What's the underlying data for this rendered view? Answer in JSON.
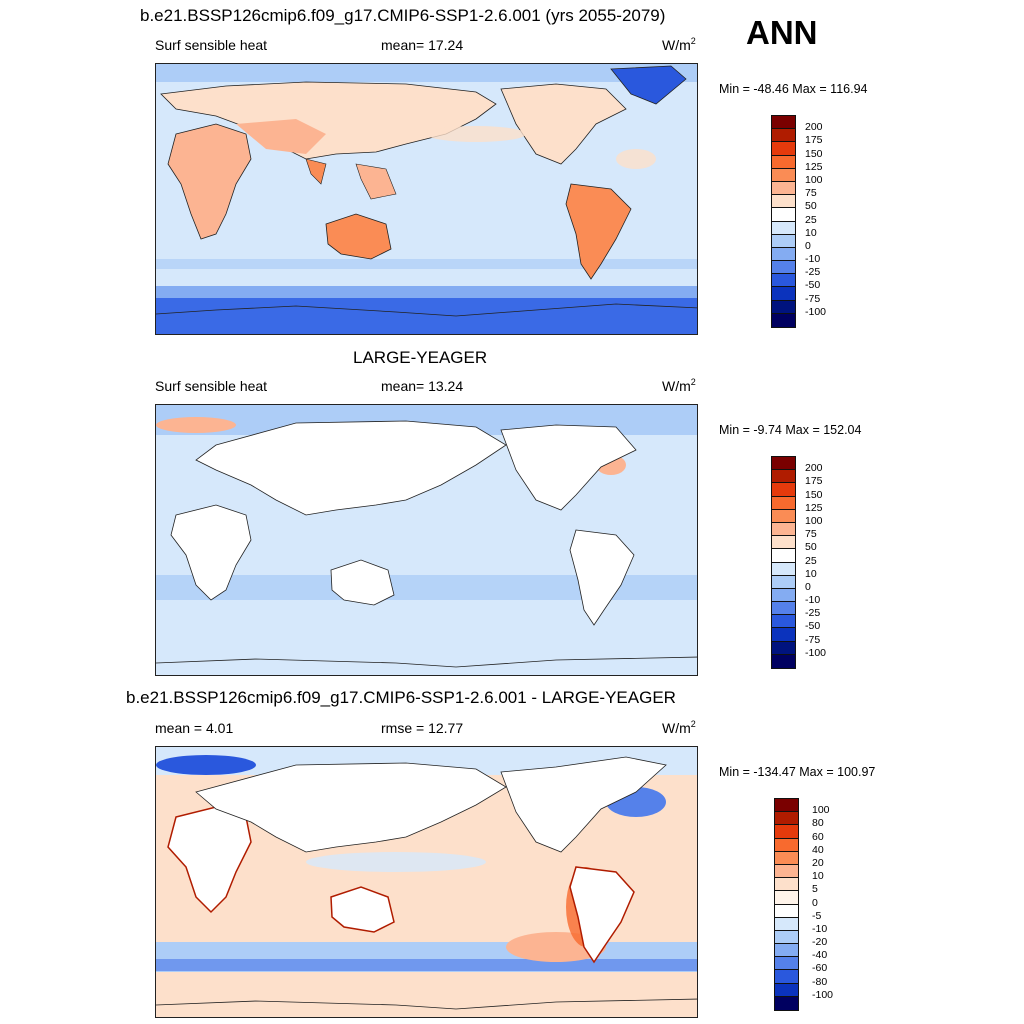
{
  "annual_label": "ANN",
  "panels": [
    {
      "title": "b.e21.BSSP126cmip6.f09_g17.CMIP6-SSP1-2.6.001 (yrs 2055-2079)",
      "left_label": "Surf sensible heat",
      "mid_label": "mean=  17.24",
      "units": "W/m",
      "units_sup": "2",
      "minmax": "Min = -48.46 Max = 116.94",
      "levels": [
        "200",
        "175",
        "150",
        "125",
        "100",
        "75",
        "50",
        "25",
        "10",
        "0",
        "-10",
        "-25",
        "-50",
        "-75",
        "-100"
      ]
    },
    {
      "title": "LARGE-YEAGER",
      "left_label": "Surf sensible heat",
      "mid_label": "mean=  13.24",
      "units": "W/m",
      "units_sup": "2",
      "minmax": "Min =  -9.74 Max = 152.04",
      "levels": [
        "200",
        "175",
        "150",
        "125",
        "100",
        "75",
        "50",
        "25",
        "10",
        "0",
        "-10",
        "-25",
        "-50",
        "-75",
        "-100"
      ]
    },
    {
      "title": "b.e21.BSSP126cmip6.f09_g17.CMIP6-SSP1-2.6.001 - LARGE-YEAGER",
      "left_label": "mean =   4.01",
      "mid_label": "rmse =  12.77",
      "units": "W/m",
      "units_sup": "2",
      "minmax": "Min = -134.47 Max = 100.97",
      "levels": [
        "100",
        "80",
        "60",
        "40",
        "20",
        "10",
        "5",
        "0",
        "-5",
        "-10",
        "-20",
        "-40",
        "-60",
        "-80",
        "-100"
      ]
    }
  ],
  "colors": {
    "abs_scale": [
      "#7a0000",
      "#b01c00",
      "#e53a0c",
      "#f86a2e",
      "#fa8c55",
      "#fcb492",
      "#fde0cb",
      "#ffffff",
      "#d6e8fb",
      "#adcdf7",
      "#84acf2",
      "#5581ea",
      "#2a58dd",
      "#0b33bd",
      "#00137e",
      "#000060"
    ],
    "diff_scale": [
      "#7a0000",
      "#b01c00",
      "#e53a0c",
      "#f86a2e",
      "#fa8c55",
      "#fcb492",
      "#fde0cb",
      "#fff4ea",
      "#ffffff",
      "#d6e8fb",
      "#adcdf7",
      "#84acf2",
      "#5581ea",
      "#2a58dd",
      "#0b33bd",
      "#000060"
    ],
    "land_warm": "#fcb492",
    "ocean_light": "#d6e8fb",
    "southern_ocean": "#3a6ae6"
  }
}
